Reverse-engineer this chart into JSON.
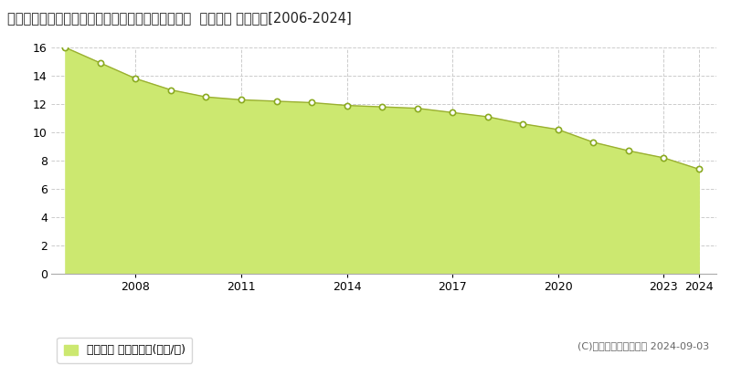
{
  "title": "愛知県知多郡南知多町大字師崎字神戸浦１７７番１  地価公示 地価推移[2006-2024]",
  "years": [
    2006,
    2007,
    2008,
    2009,
    2010,
    2011,
    2012,
    2013,
    2014,
    2015,
    2016,
    2017,
    2018,
    2019,
    2020,
    2021,
    2022,
    2023,
    2024
  ],
  "values": [
    16.0,
    14.9,
    13.8,
    13.0,
    12.5,
    12.3,
    12.2,
    12.1,
    11.9,
    11.8,
    11.7,
    11.4,
    11.1,
    10.6,
    10.2,
    9.3,
    8.7,
    8.2,
    7.4
  ],
  "fill_color": "#cce870",
  "line_color": "#9ab030",
  "marker_face_color": "#ffffff",
  "marker_edge_color": "#8aaa20",
  "bg_color": "#ffffff",
  "grid_color": "#cccccc",
  "ylim_min": 0,
  "ylim_max": 16,
  "yticks": [
    0,
    2,
    4,
    6,
    8,
    10,
    12,
    14,
    16
  ],
  "xtick_years": [
    2008,
    2011,
    2014,
    2017,
    2020,
    2023,
    2024
  ],
  "xlim_min": 2005.6,
  "xlim_max": 2024.5,
  "legend_label": "地価公示 平均坪単価(万円/坪)",
  "copyright_text": "(C)土地価格ドットコム 2024-09-03",
  "title_fontsize": 10.5,
  "tick_fontsize": 9,
  "legend_fontsize": 9,
  "copyright_fontsize": 8
}
